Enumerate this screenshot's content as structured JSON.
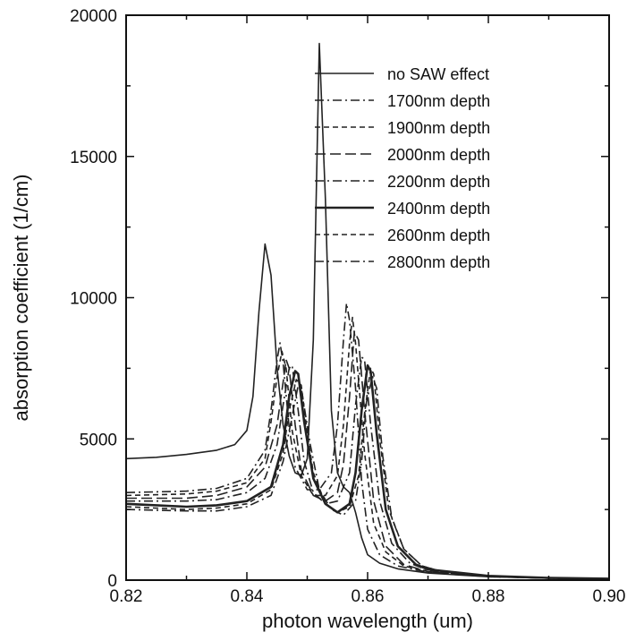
{
  "chart_data": {
    "type": "line",
    "title": "",
    "xlabel": "photon wavelength (um)",
    "ylabel": "absorption coefficient (1/cm)",
    "xlim": [
      0.82,
      0.9
    ],
    "ylim": [
      0,
      20000
    ],
    "xticks": [
      0.82,
      0.84,
      0.86,
      0.88,
      0.9
    ],
    "xtick_labels": [
      "0.82",
      "0.84",
      "0.86",
      "0.88",
      "0.90"
    ],
    "yticks": [
      0,
      5000,
      10000,
      15000,
      20000
    ],
    "ytick_labels": [
      "0",
      "5000",
      "10000",
      "15000",
      "20000"
    ],
    "grid": false,
    "legend_position": "top-right",
    "series": [
      {
        "name": "no SAW effect",
        "dash": "solid",
        "points": [
          [
            0.82,
            4300
          ],
          [
            0.825,
            4350
          ],
          [
            0.83,
            4450
          ],
          [
            0.835,
            4600
          ],
          [
            0.838,
            4800
          ],
          [
            0.84,
            5300
          ],
          [
            0.841,
            6500
          ],
          [
            0.842,
            9500
          ],
          [
            0.843,
            11900
          ],
          [
            0.844,
            10800
          ],
          [
            0.845,
            7500
          ],
          [
            0.846,
            5500
          ],
          [
            0.847,
            4400
          ],
          [
            0.848,
            3800
          ],
          [
            0.849,
            3700
          ],
          [
            0.85,
            4300
          ],
          [
            0.851,
            8500
          ],
          [
            0.852,
            19000
          ],
          [
            0.853,
            13500
          ],
          [
            0.854,
            6000
          ],
          [
            0.855,
            3800
          ],
          [
            0.856,
            3300
          ],
          [
            0.857,
            3100
          ],
          [
            0.858,
            2400
          ],
          [
            0.859,
            1500
          ],
          [
            0.86,
            900
          ],
          [
            0.862,
            600
          ],
          [
            0.865,
            400
          ],
          [
            0.87,
            250
          ],
          [
            0.88,
            120
          ],
          [
            0.89,
            70
          ],
          [
            0.9,
            50
          ]
        ]
      },
      {
        "name": "1700nm depth",
        "dash": "dash-dot",
        "points": [
          [
            0.82,
            3100
          ],
          [
            0.83,
            3150
          ],
          [
            0.835,
            3250
          ],
          [
            0.84,
            3600
          ],
          [
            0.843,
            4600
          ],
          [
            0.844,
            6000
          ],
          [
            0.845,
            7800
          ],
          [
            0.8455,
            8400
          ],
          [
            0.846,
            7700
          ],
          [
            0.847,
            5400
          ],
          [
            0.848,
            4000
          ],
          [
            0.85,
            3200
          ],
          [
            0.852,
            3200
          ],
          [
            0.854,
            3800
          ],
          [
            0.855,
            5500
          ],
          [
            0.856,
            8500
          ],
          [
            0.8565,
            9800
          ],
          [
            0.857,
            9200
          ],
          [
            0.858,
            6800
          ],
          [
            0.859,
            3500
          ],
          [
            0.86,
            1800
          ],
          [
            0.862,
            900
          ],
          [
            0.865,
            500
          ],
          [
            0.87,
            280
          ],
          [
            0.88,
            120
          ],
          [
            0.89,
            70
          ],
          [
            0.9,
            50
          ]
        ]
      },
      {
        "name": "1900nm depth",
        "dash": "short-dash",
        "points": [
          [
            0.82,
            3000
          ],
          [
            0.83,
            3050
          ],
          [
            0.835,
            3150
          ],
          [
            0.84,
            3450
          ],
          [
            0.843,
            4300
          ],
          [
            0.844,
            5600
          ],
          [
            0.845,
            7200
          ],
          [
            0.8458,
            8100
          ],
          [
            0.8465,
            7500
          ],
          [
            0.8475,
            5300
          ],
          [
            0.849,
            3700
          ],
          [
            0.851,
            3000
          ],
          [
            0.853,
            3000
          ],
          [
            0.855,
            3700
          ],
          [
            0.856,
            5500
          ],
          [
            0.857,
            8400
          ],
          [
            0.8575,
            9300
          ],
          [
            0.858,
            8400
          ],
          [
            0.8595,
            4500
          ],
          [
            0.861,
            2000
          ],
          [
            0.863,
            1000
          ],
          [
            0.866,
            500
          ],
          [
            0.87,
            300
          ],
          [
            0.88,
            120
          ],
          [
            0.89,
            70
          ],
          [
            0.9,
            50
          ]
        ]
      },
      {
        "name": "2000nm depth",
        "dash": "long-dash",
        "points": [
          [
            0.82,
            2900
          ],
          [
            0.83,
            2900
          ],
          [
            0.835,
            3000
          ],
          [
            0.84,
            3300
          ],
          [
            0.843,
            4000
          ],
          [
            0.845,
            5500
          ],
          [
            0.846,
            7000
          ],
          [
            0.8465,
            7800
          ],
          [
            0.847,
            7500
          ],
          [
            0.848,
            5500
          ],
          [
            0.849,
            3900
          ],
          [
            0.851,
            3000
          ],
          [
            0.853,
            2800
          ],
          [
            0.855,
            3100
          ],
          [
            0.856,
            4100
          ],
          [
            0.857,
            6500
          ],
          [
            0.8578,
            8800
          ],
          [
            0.8585,
            8500
          ],
          [
            0.8595,
            6000
          ],
          [
            0.861,
            2800
          ],
          [
            0.863,
            1200
          ],
          [
            0.866,
            550
          ],
          [
            0.87,
            300
          ],
          [
            0.88,
            130
          ],
          [
            0.89,
            70
          ],
          [
            0.9,
            50
          ]
        ]
      },
      {
        "name": "2200nm depth",
        "dash": "dash-dot",
        "points": [
          [
            0.82,
            2800
          ],
          [
            0.83,
            2800
          ],
          [
            0.835,
            2850
          ],
          [
            0.84,
            3100
          ],
          [
            0.843,
            3600
          ],
          [
            0.845,
            4800
          ],
          [
            0.846,
            6200
          ],
          [
            0.847,
            7500
          ],
          [
            0.8475,
            7600
          ],
          [
            0.8485,
            6000
          ],
          [
            0.8495,
            4200
          ],
          [
            0.851,
            3100
          ],
          [
            0.853,
            2700
          ],
          [
            0.855,
            2800
          ],
          [
            0.857,
            3800
          ],
          [
            0.858,
            6200
          ],
          [
            0.859,
            7900
          ],
          [
            0.8595,
            7800
          ],
          [
            0.8605,
            5500
          ],
          [
            0.862,
            2800
          ],
          [
            0.864,
            1300
          ],
          [
            0.867,
            600
          ],
          [
            0.87,
            350
          ],
          [
            0.88,
            140
          ],
          [
            0.89,
            70
          ],
          [
            0.9,
            50
          ]
        ]
      },
      {
        "name": "2400nm depth",
        "dash": "solid",
        "points": [
          [
            0.82,
            2700
          ],
          [
            0.83,
            2600
          ],
          [
            0.835,
            2650
          ],
          [
            0.84,
            2800
          ],
          [
            0.844,
            3300
          ],
          [
            0.846,
            4800
          ],
          [
            0.847,
            6500
          ],
          [
            0.848,
            7400
          ],
          [
            0.8485,
            7300
          ],
          [
            0.8495,
            5600
          ],
          [
            0.851,
            3600
          ],
          [
            0.853,
            2700
          ],
          [
            0.855,
            2400
          ],
          [
            0.857,
            2700
          ],
          [
            0.858,
            3800
          ],
          [
            0.859,
            6000
          ],
          [
            0.86,
            7600
          ],
          [
            0.8605,
            7400
          ],
          [
            0.8615,
            5200
          ],
          [
            0.863,
            2500
          ],
          [
            0.865,
            1200
          ],
          [
            0.868,
            550
          ],
          [
            0.87,
            380
          ],
          [
            0.88,
            150
          ],
          [
            0.89,
            80
          ],
          [
            0.9,
            50
          ]
        ]
      },
      {
        "name": "2600nm depth",
        "dash": "short-dash",
        "points": [
          [
            0.82,
            2600
          ],
          [
            0.83,
            2500
          ],
          [
            0.835,
            2550
          ],
          [
            0.84,
            2700
          ],
          [
            0.844,
            3200
          ],
          [
            0.846,
            4500
          ],
          [
            0.847,
            6000
          ],
          [
            0.8482,
            7100
          ],
          [
            0.849,
            6900
          ],
          [
            0.85,
            5200
          ],
          [
            0.851,
            3800
          ],
          [
            0.853,
            2700
          ],
          [
            0.855,
            2400
          ],
          [
            0.857,
            2600
          ],
          [
            0.8585,
            3700
          ],
          [
            0.8595,
            5900
          ],
          [
            0.8605,
            7500
          ],
          [
            0.861,
            7300
          ],
          [
            0.862,
            5000
          ],
          [
            0.8635,
            2500
          ],
          [
            0.866,
            1100
          ],
          [
            0.869,
            500
          ],
          [
            0.872,
            320
          ],
          [
            0.88,
            150
          ],
          [
            0.89,
            80
          ],
          [
            0.9,
            50
          ]
        ]
      },
      {
        "name": "2800nm depth",
        "dash": "dash-dot",
        "points": [
          [
            0.82,
            2500
          ],
          [
            0.83,
            2450
          ],
          [
            0.835,
            2450
          ],
          [
            0.84,
            2600
          ],
          [
            0.844,
            3000
          ],
          [
            0.846,
            4200
          ],
          [
            0.8475,
            5800
          ],
          [
            0.8485,
            6900
          ],
          [
            0.849,
            6800
          ],
          [
            0.8505,
            4800
          ],
          [
            0.852,
            3200
          ],
          [
            0.854,
            2500
          ],
          [
            0.856,
            2300
          ],
          [
            0.858,
            2800
          ],
          [
            0.859,
            4200
          ],
          [
            0.8598,
            6300
          ],
          [
            0.8608,
            7200
          ],
          [
            0.8615,
            6800
          ],
          [
            0.8625,
            4400
          ],
          [
            0.864,
            2200
          ],
          [
            0.866,
            1100
          ],
          [
            0.869,
            500
          ],
          [
            0.872,
            320
          ],
          [
            0.88,
            150
          ],
          [
            0.89,
            80
          ],
          [
            0.9,
            50
          ]
        ]
      }
    ]
  }
}
